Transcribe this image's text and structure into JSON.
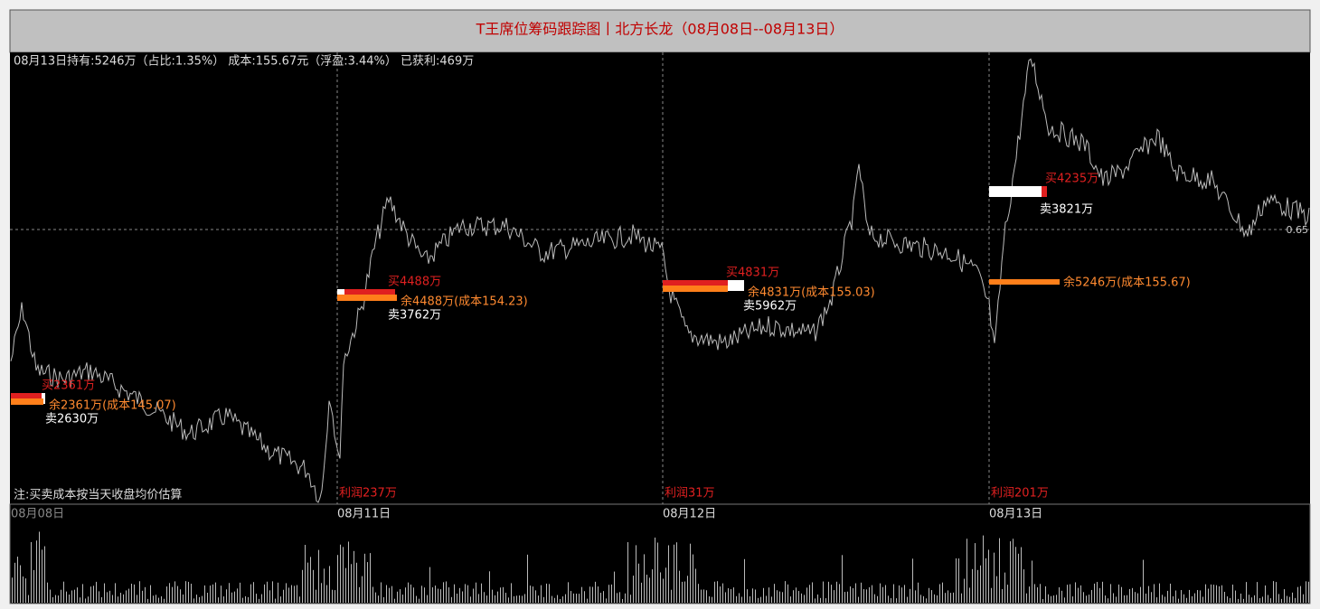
{
  "window": {
    "title": "T王席位筹码跟踪图丨北方长龙（08月08日--08月13日）",
    "summary": "08月13日持有:5246万（占比:1.35%） 成本:155.67元（浮盈:3.44%） 已获利:469万",
    "note": "注:买卖成本按当天收盘均价估算",
    "price_label": "0.65",
    "days": [
      {
        "date": "08月08日",
        "buy": "买2361万",
        "remain": "余2361万(成本145.07)",
        "sell": "卖2630万"
      },
      {
        "date": "08月11日",
        "profit": "利润237万",
        "buy": "买4488万",
        "remain": "余4488万(成本154.23)",
        "sell": "卖3762万"
      },
      {
        "date": "08月12日",
        "profit": "利润31万",
        "buy": "买4831万",
        "remain": "余4831万(成本155.03)",
        "sell": "卖5962万"
      },
      {
        "date": "08月13日",
        "profit": "利润201万",
        "buy": "买4235万",
        "remain": "余5246万(成本155.67)",
        "sell": "卖3821万"
      }
    ]
  }
}
